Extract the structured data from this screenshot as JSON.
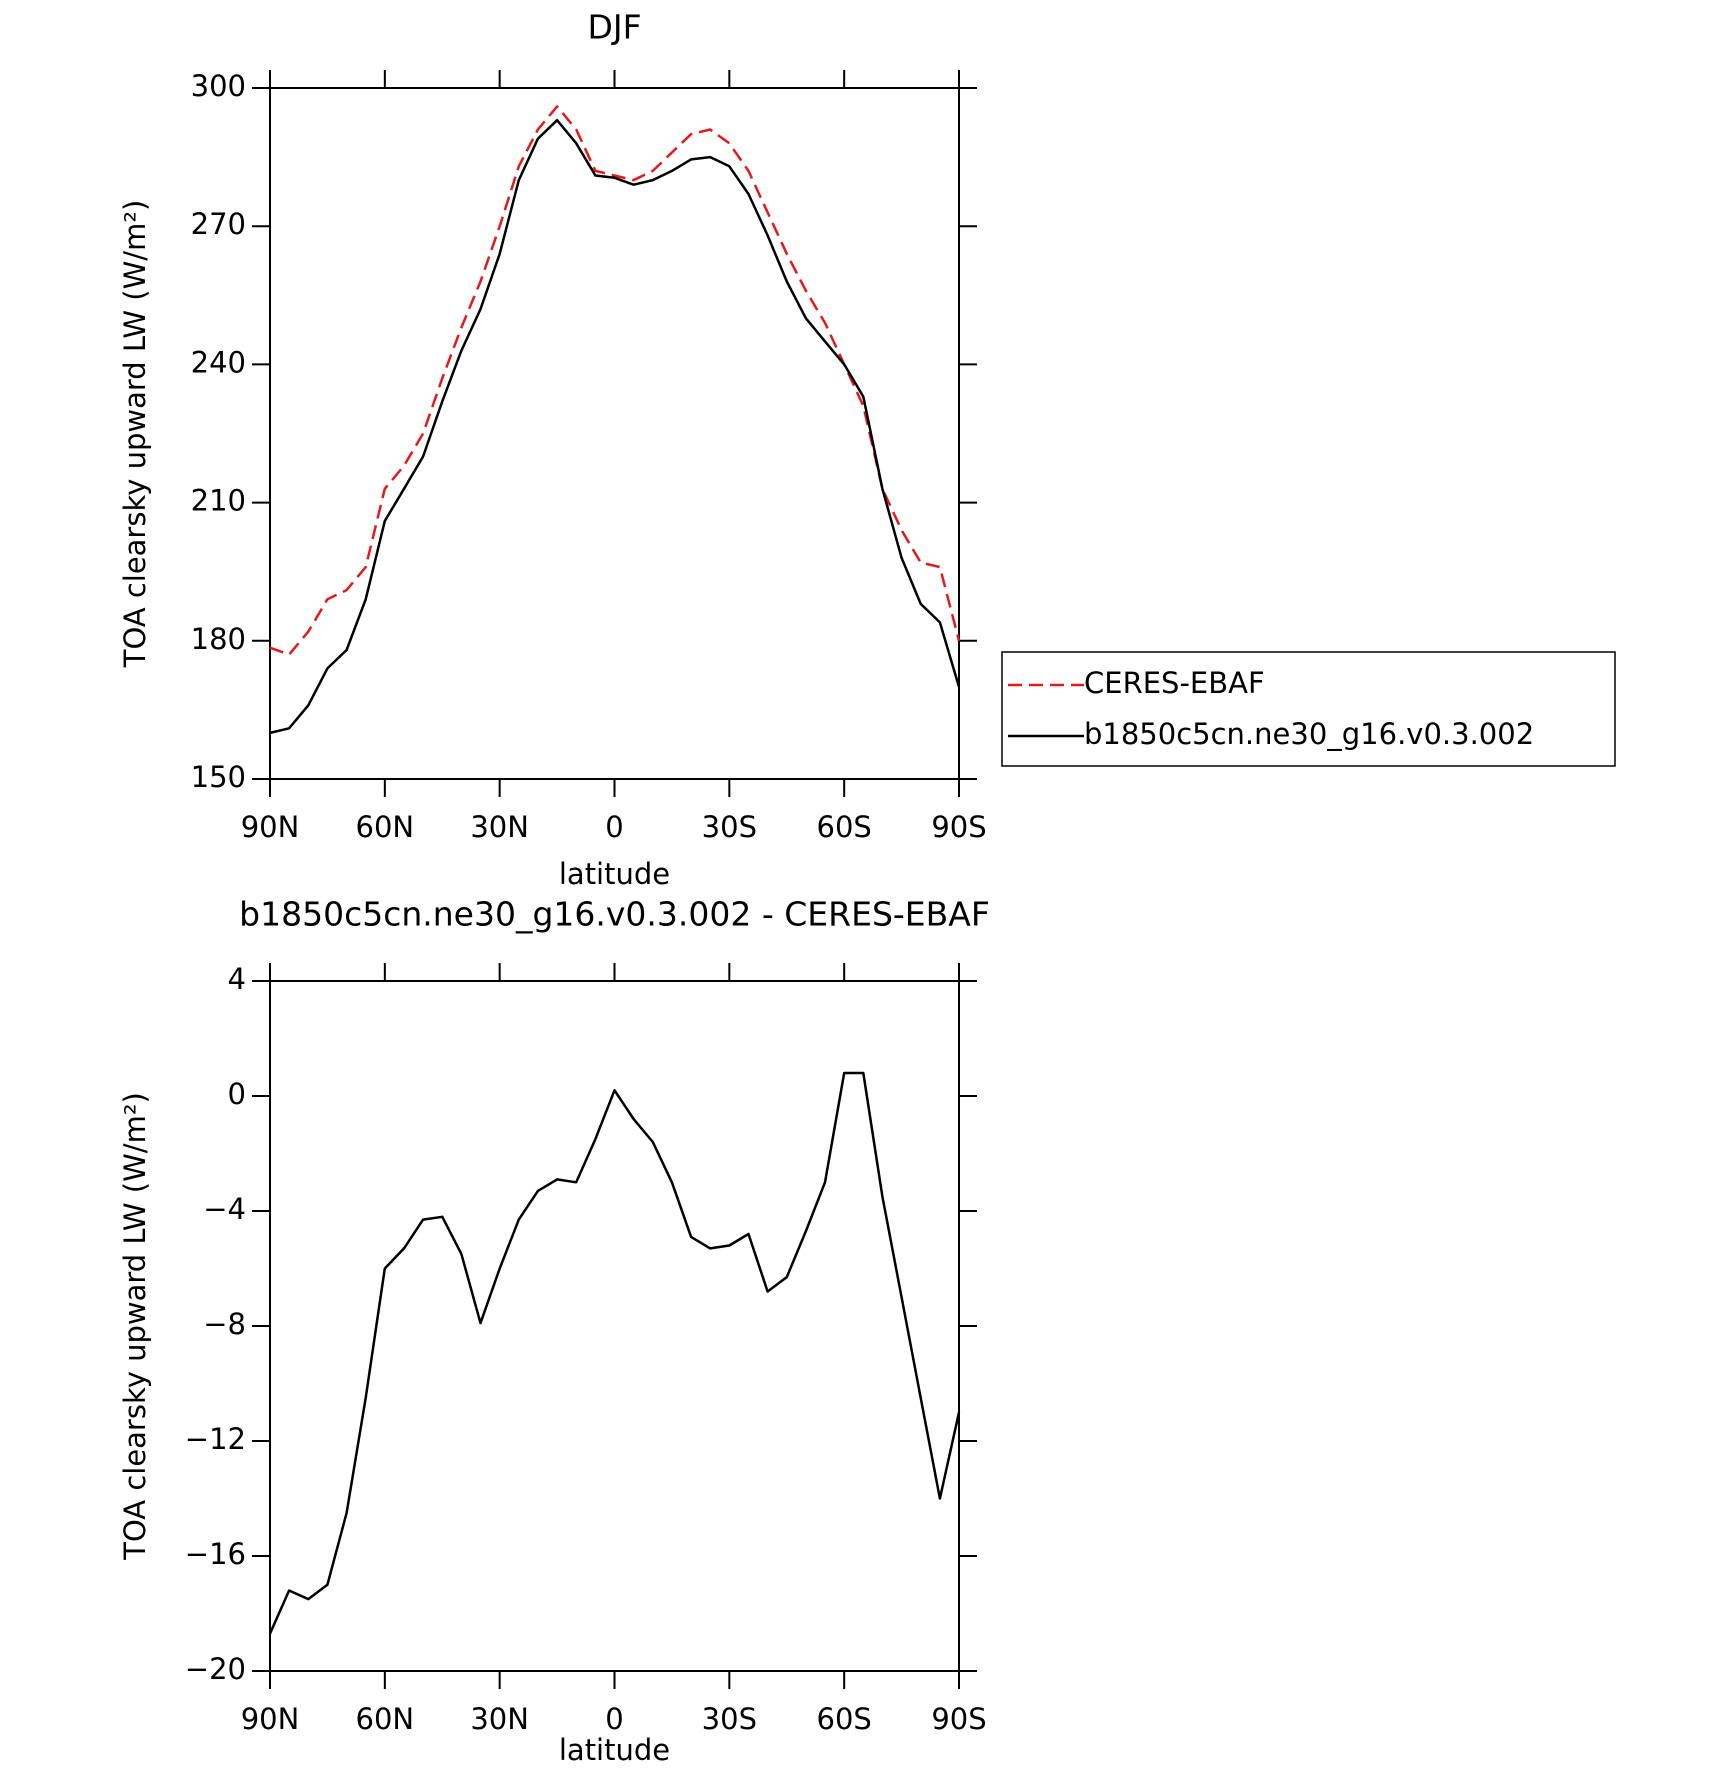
{
  "chart_data": [
    {
      "type": "line",
      "title": "DJF",
      "x_label": "latitude",
      "y_label": "TOA clearsky upward LW (W/m²)",
      "x": [
        90,
        85,
        80,
        75,
        70,
        65,
        60,
        55,
        50,
        45,
        40,
        35,
        30,
        25,
        20,
        15,
        10,
        5,
        0,
        -5,
        -10,
        -15,
        -20,
        -25,
        -30,
        -35,
        -40,
        -45,
        -50,
        -55,
        -60,
        -65,
        -70,
        -75,
        -80,
        -85,
        -90
      ],
      "series": [
        {
          "name": "CERES-EBAF",
          "color": "#e31a1c",
          "linestyle": "dashed",
          "values": [
            178.5,
            177,
            182,
            189,
            191,
            196,
            213,
            218,
            225,
            237,
            248,
            258,
            270,
            283,
            291,
            296,
            291,
            282,
            281,
            280,
            282,
            286,
            290,
            291,
            288,
            282,
            273,
            264,
            256,
            249,
            240,
            231,
            213,
            204,
            197,
            196,
            180
          ]
        },
        {
          "name": "b1850c5cn.ne30_g16.v0.3.002",
          "color": "#000000",
          "linestyle": "solid",
          "values": [
            160,
            161,
            166,
            174,
            178,
            189,
            206,
            213,
            220,
            232,
            243,
            252,
            264,
            280,
            289,
            293,
            288,
            281,
            280.5,
            279,
            280,
            282,
            284.5,
            285,
            283,
            277,
            268,
            258,
            250,
            245,
            240,
            233,
            213,
            198,
            188,
            184,
            170
          ]
        }
      ],
      "xlim": [
        90,
        -90
      ],
      "xticks": [
        {
          "value": 90,
          "label": "90N"
        },
        {
          "value": 60,
          "label": "60N"
        },
        {
          "value": 30,
          "label": "30N"
        },
        0,
        {
          "value": -30,
          "label": "30S"
        },
        {
          "value": -60,
          "label": "60S"
        },
        {
          "value": -90,
          "label": "90S"
        }
      ],
      "ylim": [
        150,
        300
      ],
      "yticks": [
        150,
        180,
        210,
        240,
        270,
        300
      ],
      "legend": "outside-right"
    },
    {
      "type": "line",
      "title": "b1850c5cn.ne30_g16.v0.3.002 - CERES-EBAF",
      "x_label": "latitude",
      "y_label": "TOA clearsky upward LW (W/m²)",
      "x": [
        90,
        85,
        80,
        75,
        70,
        65,
        60,
        55,
        50,
        45,
        40,
        35,
        30,
        25,
        20,
        15,
        10,
        5,
        0,
        -5,
        -10,
        -15,
        -20,
        -25,
        -30,
        -35,
        -40,
        -45,
        -50,
        -55,
        -60,
        -65,
        -70,
        -75,
        -80,
        -85,
        -90
      ],
      "series": [
        {
          "color": "#000000",
          "linestyle": "solid",
          "values": [
            -18.7,
            -17.2,
            -17.5,
            -17.0,
            -14.5,
            -10.5,
            -6.0,
            -5.3,
            -4.3,
            -4.2,
            -5.5,
            -7.9,
            -6.0,
            -4.3,
            -3.3,
            -2.9,
            -3.0,
            -1.5,
            0.2,
            -0.8,
            -1.6,
            -3.0,
            -4.9,
            -5.3,
            -5.2,
            -4.8,
            -6.8,
            -6.3,
            -4.7,
            -3.0,
            0.8,
            0.8,
            -3.5,
            -7.0,
            -10.5,
            -14.0,
            -11.0
          ]
        }
      ],
      "xlim": [
        90,
        -90
      ],
      "xticks": [
        {
          "value": 90,
          "label": "90N"
        },
        {
          "value": 60,
          "label": "60N"
        },
        {
          "value": 30,
          "label": "30N"
        },
        0,
        {
          "value": -30,
          "label": "30S"
        },
        {
          "value": -60,
          "label": "60S"
        },
        {
          "value": -90,
          "label": "90S"
        }
      ],
      "ylim": [
        -20,
        4
      ],
      "yticks": [
        -20,
        -16,
        -12,
        -8,
        -4,
        0,
        4
      ]
    }
  ]
}
